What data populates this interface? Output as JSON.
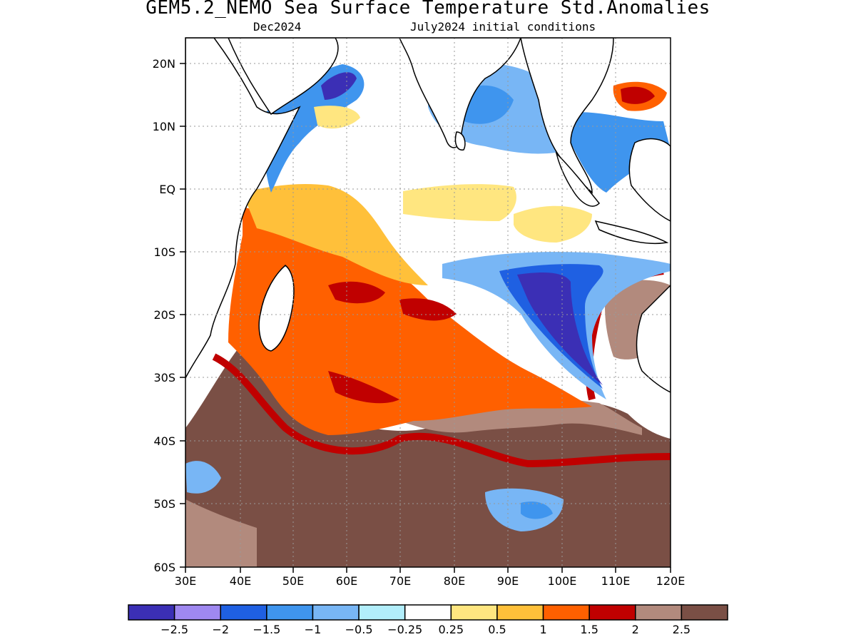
{
  "title": "GEM5.2_NEMO Sea Surface Temperature Std.Anomalies",
  "subtitle_left": "Dec2024",
  "subtitle_right": "July2024 initial conditions",
  "axes": {
    "lat_ticks": [
      "20N",
      "10N",
      "EQ",
      "10S",
      "20S",
      "30S",
      "40S",
      "50S",
      "60S"
    ],
    "lon_ticks": [
      "30E",
      "40E",
      "50E",
      "60E",
      "70E",
      "80E",
      "90E",
      "100E",
      "110E",
      "120E"
    ],
    "lat_range": [
      -60,
      24
    ],
    "lon_range": [
      30,
      120
    ],
    "grid": true
  },
  "colorbar": {
    "colors": [
      "#3b2fb5",
      "#9f88f0",
      "#1f60e2",
      "#3f95ee",
      "#78b6f5",
      "#b2eefb",
      "#ffffff",
      "#ffe680",
      "#ffc03a",
      "#ff6000",
      "#c00000",
      "#b28a7d",
      "#7a4f45"
    ],
    "labels": [
      "−2.5",
      "−2",
      "−1.5",
      "−1",
      "−0.5",
      "−0.25",
      "0.25",
      "0.5",
      "1",
      "1.5",
      "2",
      "2.5"
    ]
  }
}
